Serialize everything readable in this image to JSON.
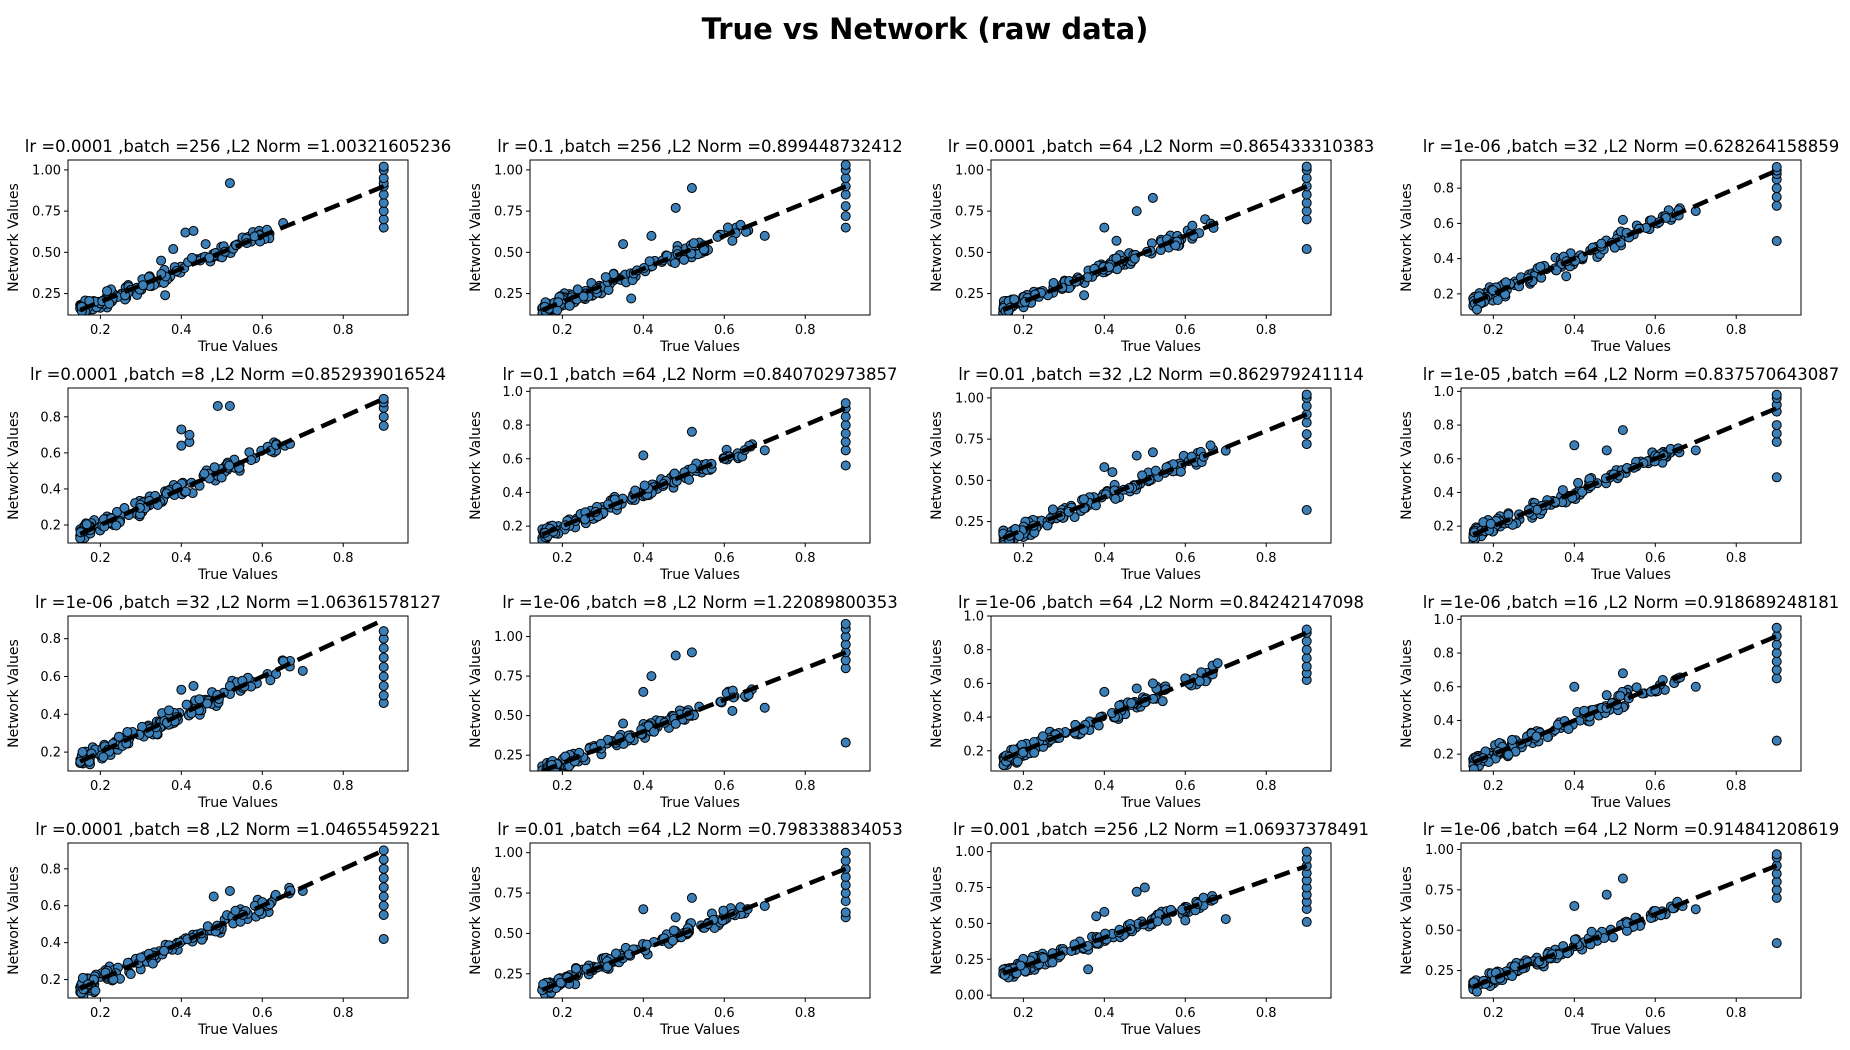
{
  "figure": {
    "title": "True vs Network (raw data)",
    "xlabel": "True Values",
    "ylabel": "Network Values",
    "marker_color": "#3b7fb8",
    "marker_edge": "#000000",
    "line_color": "#000000"
  },
  "chart_data": [
    {
      "type": "scatter",
      "title": "lr =0.0001 ,batch =256 ,L2 Norm =1.00321605236",
      "xlim": [
        0.12,
        0.96
      ],
      "xticks": [
        0.2,
        0.4,
        0.6,
        0.8
      ],
      "ylim": [
        0.12,
        1.06
      ],
      "yticks": [
        0.25,
        0.5,
        0.75,
        1.0
      ],
      "yticklabels": [
        "0.25",
        "0.50",
        "0.75",
        "1.00"
      ],
      "line": [
        [
          0.15,
          0.15
        ],
        [
          0.9,
          0.9
        ]
      ],
      "seed": 101,
      "outliers": [
        [
          0.32,
          0.35
        ],
        [
          0.35,
          0.45
        ],
        [
          0.38,
          0.52
        ],
        [
          0.41,
          0.62
        ],
        [
          0.43,
          0.63
        ],
        [
          0.46,
          0.55
        ],
        [
          0.52,
          0.92
        ],
        [
          0.36,
          0.24
        ]
      ],
      "end_points": [
        0.65,
        0.7,
        0.75,
        0.8,
        0.85,
        0.9,
        0.92,
        0.95,
        1.0,
        1.02
      ]
    },
    {
      "type": "scatter",
      "title": "lr =0.1 ,batch =256 ,L2 Norm =0.899448732412",
      "xlim": [
        0.12,
        0.96
      ],
      "xticks": [
        0.2,
        0.4,
        0.6,
        0.8
      ],
      "ylim": [
        0.12,
        1.06
      ],
      "yticks": [
        0.25,
        0.5,
        0.75,
        1.0
      ],
      "yticklabels": [
        "0.25",
        "0.50",
        "0.75",
        "1.00"
      ],
      "line": [
        [
          0.15,
          0.15
        ],
        [
          0.9,
          0.9
        ]
      ],
      "seed": 102,
      "outliers": [
        [
          0.35,
          0.55
        ],
        [
          0.42,
          0.6
        ],
        [
          0.48,
          0.77
        ],
        [
          0.52,
          0.89
        ],
        [
          0.62,
          0.57
        ],
        [
          0.7,
          0.6
        ],
        [
          0.37,
          0.22
        ]
      ],
      "end_points": [
        0.65,
        0.72,
        0.78,
        0.85,
        0.9,
        0.95,
        1.0,
        1.03
      ]
    },
    {
      "type": "scatter",
      "title": "lr =0.0001 ,batch =64 ,L2 Norm =0.865433310383",
      "xlim": [
        0.12,
        0.96
      ],
      "xticks": [
        0.2,
        0.4,
        0.6,
        0.8
      ],
      "ylim": [
        0.12,
        1.06
      ],
      "yticks": [
        0.25,
        0.5,
        0.75,
        1.0
      ],
      "yticklabels": [
        "0.25",
        "0.50",
        "0.75",
        "1.00"
      ],
      "line": [
        [
          0.15,
          0.15
        ],
        [
          0.9,
          0.9
        ]
      ],
      "seed": 103,
      "outliers": [
        [
          0.4,
          0.65
        ],
        [
          0.43,
          0.57
        ],
        [
          0.48,
          0.75
        ],
        [
          0.52,
          0.83
        ],
        [
          0.62,
          0.6
        ],
        [
          0.35,
          0.24
        ]
      ],
      "end_points": [
        0.52,
        0.7,
        0.75,
        0.8,
        0.85,
        0.9,
        0.95,
        1.0,
        1.02
      ]
    },
    {
      "type": "scatter",
      "title": "lr =1e-06 ,batch =32 ,L2 Norm =0.628264158859",
      "xlim": [
        0.12,
        0.96
      ],
      "xticks": [
        0.2,
        0.4,
        0.6,
        0.8
      ],
      "ylim": [
        0.08,
        0.96
      ],
      "yticks": [
        0.2,
        0.4,
        0.6,
        0.8
      ],
      "yticklabels": [
        "0.2",
        "0.4",
        "0.6",
        "0.8"
      ],
      "line": [
        [
          0.15,
          0.15
        ],
        [
          0.9,
          0.9
        ]
      ],
      "seed": 104,
      "outliers": [
        [
          0.52,
          0.62
        ],
        [
          0.56,
          0.57
        ],
        [
          0.7,
          0.67
        ],
        [
          0.38,
          0.3
        ]
      ],
      "end_points": [
        0.5,
        0.7,
        0.75,
        0.8,
        0.85,
        0.88,
        0.9,
        0.92
      ]
    },
    {
      "type": "scatter",
      "title": "lr =0.0001 ,batch =8 ,L2 Norm =0.852939016524",
      "xlim": [
        0.12,
        0.96
      ],
      "xticks": [
        0.2,
        0.4,
        0.6,
        0.8
      ],
      "ylim": [
        0.1,
        0.96
      ],
      "yticks": [
        0.2,
        0.4,
        0.6,
        0.8
      ],
      "yticklabels": [
        "0.2",
        "0.4",
        "0.6",
        "0.8"
      ],
      "line": [
        [
          0.15,
          0.15
        ],
        [
          0.9,
          0.9
        ]
      ],
      "seed": 105,
      "outliers": [
        [
          0.4,
          0.73
        ],
        [
          0.4,
          0.64
        ],
        [
          0.42,
          0.66
        ],
        [
          0.42,
          0.7
        ],
        [
          0.49,
          0.86
        ],
        [
          0.52,
          0.86
        ]
      ],
      "end_points": [
        0.75,
        0.8,
        0.85,
        0.88,
        0.9
      ]
    },
    {
      "type": "scatter",
      "title": "lr =0.1 ,batch =64 ,L2 Norm =0.840702973857",
      "xlim": [
        0.12,
        0.96
      ],
      "xticks": [
        0.2,
        0.4,
        0.6,
        0.8
      ],
      "ylim": [
        0.1,
        1.02
      ],
      "yticks": [
        0.2,
        0.4,
        0.6,
        0.8,
        1.0
      ],
      "yticklabels": [
        "0.2",
        "0.4",
        "0.6",
        "0.8",
        "1.0"
      ],
      "line": [
        [
          0.15,
          0.15
        ],
        [
          0.9,
          0.9
        ]
      ],
      "seed": 106,
      "outliers": [
        [
          0.4,
          0.62
        ],
        [
          0.52,
          0.76
        ],
        [
          0.6,
          0.6
        ],
        [
          0.7,
          0.65
        ],
        [
          0.45,
          0.45
        ]
      ],
      "end_points": [
        0.56,
        0.65,
        0.7,
        0.75,
        0.8,
        0.85,
        0.9,
        0.93
      ]
    },
    {
      "type": "scatter",
      "title": "lr =0.01 ,batch =32 ,L2 Norm =0.862979241114",
      "xlim": [
        0.12,
        0.96
      ],
      "xticks": [
        0.2,
        0.4,
        0.6,
        0.8
      ],
      "ylim": [
        0.12,
        1.06
      ],
      "yticks": [
        0.25,
        0.5,
        0.75,
        1.0
      ],
      "yticklabels": [
        "0.25",
        "0.50",
        "0.75",
        "1.00"
      ],
      "line": [
        [
          0.15,
          0.15
        ],
        [
          0.9,
          0.9
        ]
      ],
      "seed": 107,
      "outliers": [
        [
          0.4,
          0.58
        ],
        [
          0.42,
          0.55
        ],
        [
          0.48,
          0.65
        ],
        [
          0.52,
          0.67
        ],
        [
          0.7,
          0.68
        ],
        [
          0.35,
          0.33
        ]
      ],
      "end_points": [
        0.32,
        0.72,
        0.78,
        0.85,
        0.9,
        0.95,
        1.0,
        1.02
      ]
    },
    {
      "type": "scatter",
      "title": "lr =1e-05 ,batch =64 ,L2 Norm =0.837570643087",
      "xlim": [
        0.12,
        0.96
      ],
      "xticks": [
        0.2,
        0.4,
        0.6,
        0.8
      ],
      "ylim": [
        0.1,
        1.02
      ],
      "yticks": [
        0.2,
        0.4,
        0.6,
        0.8,
        1.0
      ],
      "yticklabels": [
        "0.2",
        "0.4",
        "0.6",
        "0.8",
        "1.0"
      ],
      "line": [
        [
          0.15,
          0.15
        ],
        [
          0.9,
          0.9
        ]
      ],
      "seed": 108,
      "outliers": [
        [
          0.4,
          0.68
        ],
        [
          0.48,
          0.65
        ],
        [
          0.52,
          0.77
        ],
        [
          0.62,
          0.62
        ],
        [
          0.7,
          0.65
        ]
      ],
      "end_points": [
        0.49,
        0.7,
        0.75,
        0.8,
        0.88,
        0.92,
        0.96,
        0.98
      ]
    },
    {
      "type": "scatter",
      "title": "lr =1e-06 ,batch =32 ,L2 Norm =1.06361578127",
      "xlim": [
        0.12,
        0.96
      ],
      "xticks": [
        0.2,
        0.4,
        0.6,
        0.8
      ],
      "ylim": [
        0.1,
        0.92
      ],
      "yticks": [
        0.2,
        0.4,
        0.6,
        0.8
      ],
      "yticklabels": [
        "0.2",
        "0.4",
        "0.6",
        "0.8"
      ],
      "line": [
        [
          0.15,
          0.15
        ],
        [
          0.9,
          0.9
        ]
      ],
      "seed": 109,
      "outliers": [
        [
          0.4,
          0.53
        ],
        [
          0.43,
          0.55
        ],
        [
          0.52,
          0.55
        ],
        [
          0.62,
          0.58
        ],
        [
          0.7,
          0.63
        ]
      ],
      "end_points": [
        0.46,
        0.5,
        0.55,
        0.6,
        0.65,
        0.7,
        0.75,
        0.8,
        0.84
      ]
    },
    {
      "type": "scatter",
      "title": "lr =1e-06 ,batch =8 ,L2 Norm =1.22089800353",
      "xlim": [
        0.12,
        0.96
      ],
      "xticks": [
        0.2,
        0.4,
        0.6,
        0.8
      ],
      "ylim": [
        0.15,
        1.13
      ],
      "yticks": [
        0.25,
        0.5,
        0.75,
        1.0
      ],
      "yticklabels": [
        "0.25",
        "0.50",
        "0.75",
        "1.00"
      ],
      "line": [
        [
          0.15,
          0.15
        ],
        [
          0.9,
          0.9
        ]
      ],
      "seed": 110,
      "outliers": [
        [
          0.4,
          0.65
        ],
        [
          0.42,
          0.75
        ],
        [
          0.48,
          0.88
        ],
        [
          0.52,
          0.9
        ],
        [
          0.62,
          0.53
        ],
        [
          0.7,
          0.55
        ],
        [
          0.35,
          0.45
        ]
      ],
      "end_points": [
        0.33,
        0.8,
        0.85,
        0.9,
        0.95,
        1.0,
        1.05,
        1.08
      ]
    },
    {
      "type": "scatter",
      "title": "lr =1e-06 ,batch =64 ,L2 Norm =0.84242147098",
      "xlim": [
        0.12,
        0.96
      ],
      "xticks": [
        0.2,
        0.4,
        0.6,
        0.8
      ],
      "ylim": [
        0.08,
        1.0
      ],
      "yticks": [
        0.2,
        0.4,
        0.6,
        0.8,
        1.0
      ],
      "yticklabels": [
        "0.2",
        "0.4",
        "0.6",
        "0.8",
        "1.0"
      ],
      "line": [
        [
          0.15,
          0.15
        ],
        [
          0.9,
          0.9
        ]
      ],
      "seed": 111,
      "outliers": [
        [
          0.4,
          0.55
        ],
        [
          0.48,
          0.57
        ],
        [
          0.52,
          0.6
        ],
        [
          0.6,
          0.63
        ],
        [
          0.68,
          0.72
        ]
      ],
      "end_points": [
        0.62,
        0.66,
        0.7,
        0.75,
        0.8,
        0.85,
        0.9,
        0.92
      ]
    },
    {
      "type": "scatter",
      "title": "lr =1e-06 ,batch =16 ,L2 Norm =0.918689248181",
      "xlim": [
        0.12,
        0.96
      ],
      "xticks": [
        0.2,
        0.4,
        0.6,
        0.8
      ],
      "ylim": [
        0.1,
        1.02
      ],
      "yticks": [
        0.2,
        0.4,
        0.6,
        0.8,
        1.0
      ],
      "yticklabels": [
        "0.2",
        "0.4",
        "0.6",
        "0.8",
        "1.0"
      ],
      "line": [
        [
          0.15,
          0.15
        ],
        [
          0.9,
          0.9
        ]
      ],
      "seed": 112,
      "outliers": [
        [
          0.4,
          0.6
        ],
        [
          0.48,
          0.55
        ],
        [
          0.52,
          0.68
        ],
        [
          0.6,
          0.58
        ],
        [
          0.7,
          0.6
        ]
      ],
      "end_points": [
        0.28,
        0.65,
        0.7,
        0.75,
        0.8,
        0.85,
        0.9,
        0.95
      ]
    },
    {
      "type": "scatter",
      "title": "lr =0.0001 ,batch =8 ,L2 Norm =1.04655459221",
      "xlim": [
        0.12,
        0.96
      ],
      "xticks": [
        0.2,
        0.4,
        0.6,
        0.8
      ],
      "ylim": [
        0.1,
        0.94
      ],
      "yticks": [
        0.2,
        0.4,
        0.6,
        0.8
      ],
      "yticklabels": [
        "0.2",
        "0.4",
        "0.6",
        "0.8"
      ],
      "line": [
        [
          0.15,
          0.15
        ],
        [
          0.9,
          0.9
        ]
      ],
      "seed": 113,
      "outliers": [
        [
          0.48,
          0.65
        ],
        [
          0.52,
          0.68
        ],
        [
          0.6,
          0.62
        ],
        [
          0.7,
          0.68
        ]
      ],
      "end_points": [
        0.42,
        0.55,
        0.6,
        0.65,
        0.7,
        0.75,
        0.8,
        0.85,
        0.9
      ]
    },
    {
      "type": "scatter",
      "title": "lr =0.01 ,batch =64 ,L2 Norm =0.798338834053",
      "xlim": [
        0.12,
        0.96
      ],
      "xticks": [
        0.2,
        0.4,
        0.6,
        0.8
      ],
      "ylim": [
        0.1,
        1.06
      ],
      "yticks": [
        0.25,
        0.5,
        0.75,
        1.0
      ],
      "yticklabels": [
        "0.25",
        "0.50",
        "0.75",
        "1.00"
      ],
      "line": [
        [
          0.15,
          0.15
        ],
        [
          0.9,
          0.9
        ]
      ],
      "seed": 114,
      "outliers": [
        [
          0.4,
          0.65
        ],
        [
          0.48,
          0.6
        ],
        [
          0.52,
          0.72
        ],
        [
          0.62,
          0.62
        ],
        [
          0.7,
          0.67
        ]
      ],
      "end_points": [
        0.6,
        0.63,
        0.7,
        0.75,
        0.8,
        0.85,
        0.9,
        0.95,
        1.0
      ]
    },
    {
      "type": "scatter",
      "title": "lr =0.001 ,batch =256 ,L2 Norm =1.06937378491",
      "xlim": [
        0.12,
        0.96
      ],
      "xticks": [
        0.2,
        0.4,
        0.6,
        0.8
      ],
      "ylim": [
        -0.02,
        1.06
      ],
      "yticks": [
        0.0,
        0.25,
        0.5,
        0.75,
        1.0
      ],
      "yticklabels": [
        "0.00",
        "0.25",
        "0.50",
        "0.75",
        "1.00"
      ],
      "line": [
        [
          0.15,
          0.15
        ],
        [
          0.9,
          0.9
        ]
      ],
      "seed": 115,
      "outliers": [
        [
          0.38,
          0.55
        ],
        [
          0.4,
          0.58
        ],
        [
          0.48,
          0.72
        ],
        [
          0.5,
          0.75
        ],
        [
          0.6,
          0.52
        ],
        [
          0.7,
          0.53
        ],
        [
          0.36,
          0.18
        ]
      ],
      "end_points": [
        0.51,
        0.6,
        0.65,
        0.7,
        0.75,
        0.8,
        0.85,
        0.9,
        0.95,
        1.0
      ]
    },
    {
      "type": "scatter",
      "title": "lr =1e-06 ,batch =64 ,L2 Norm =0.914841208619",
      "xlim": [
        0.12,
        0.96
      ],
      "xticks": [
        0.2,
        0.4,
        0.6,
        0.8
      ],
      "ylim": [
        0.08,
        1.04
      ],
      "yticks": [
        0.25,
        0.5,
        0.75,
        1.0
      ],
      "yticklabels": [
        "0.25",
        "0.50",
        "0.75",
        "1.00"
      ],
      "line": [
        [
          0.15,
          0.15
        ],
        [
          0.9,
          0.9
        ]
      ],
      "seed": 116,
      "outliers": [
        [
          0.4,
          0.65
        ],
        [
          0.48,
          0.72
        ],
        [
          0.52,
          0.82
        ],
        [
          0.6,
          0.62
        ],
        [
          0.7,
          0.63
        ]
      ],
      "end_points": [
        0.42,
        0.7,
        0.75,
        0.8,
        0.85,
        0.9,
        0.95,
        0.97
      ]
    }
  ]
}
